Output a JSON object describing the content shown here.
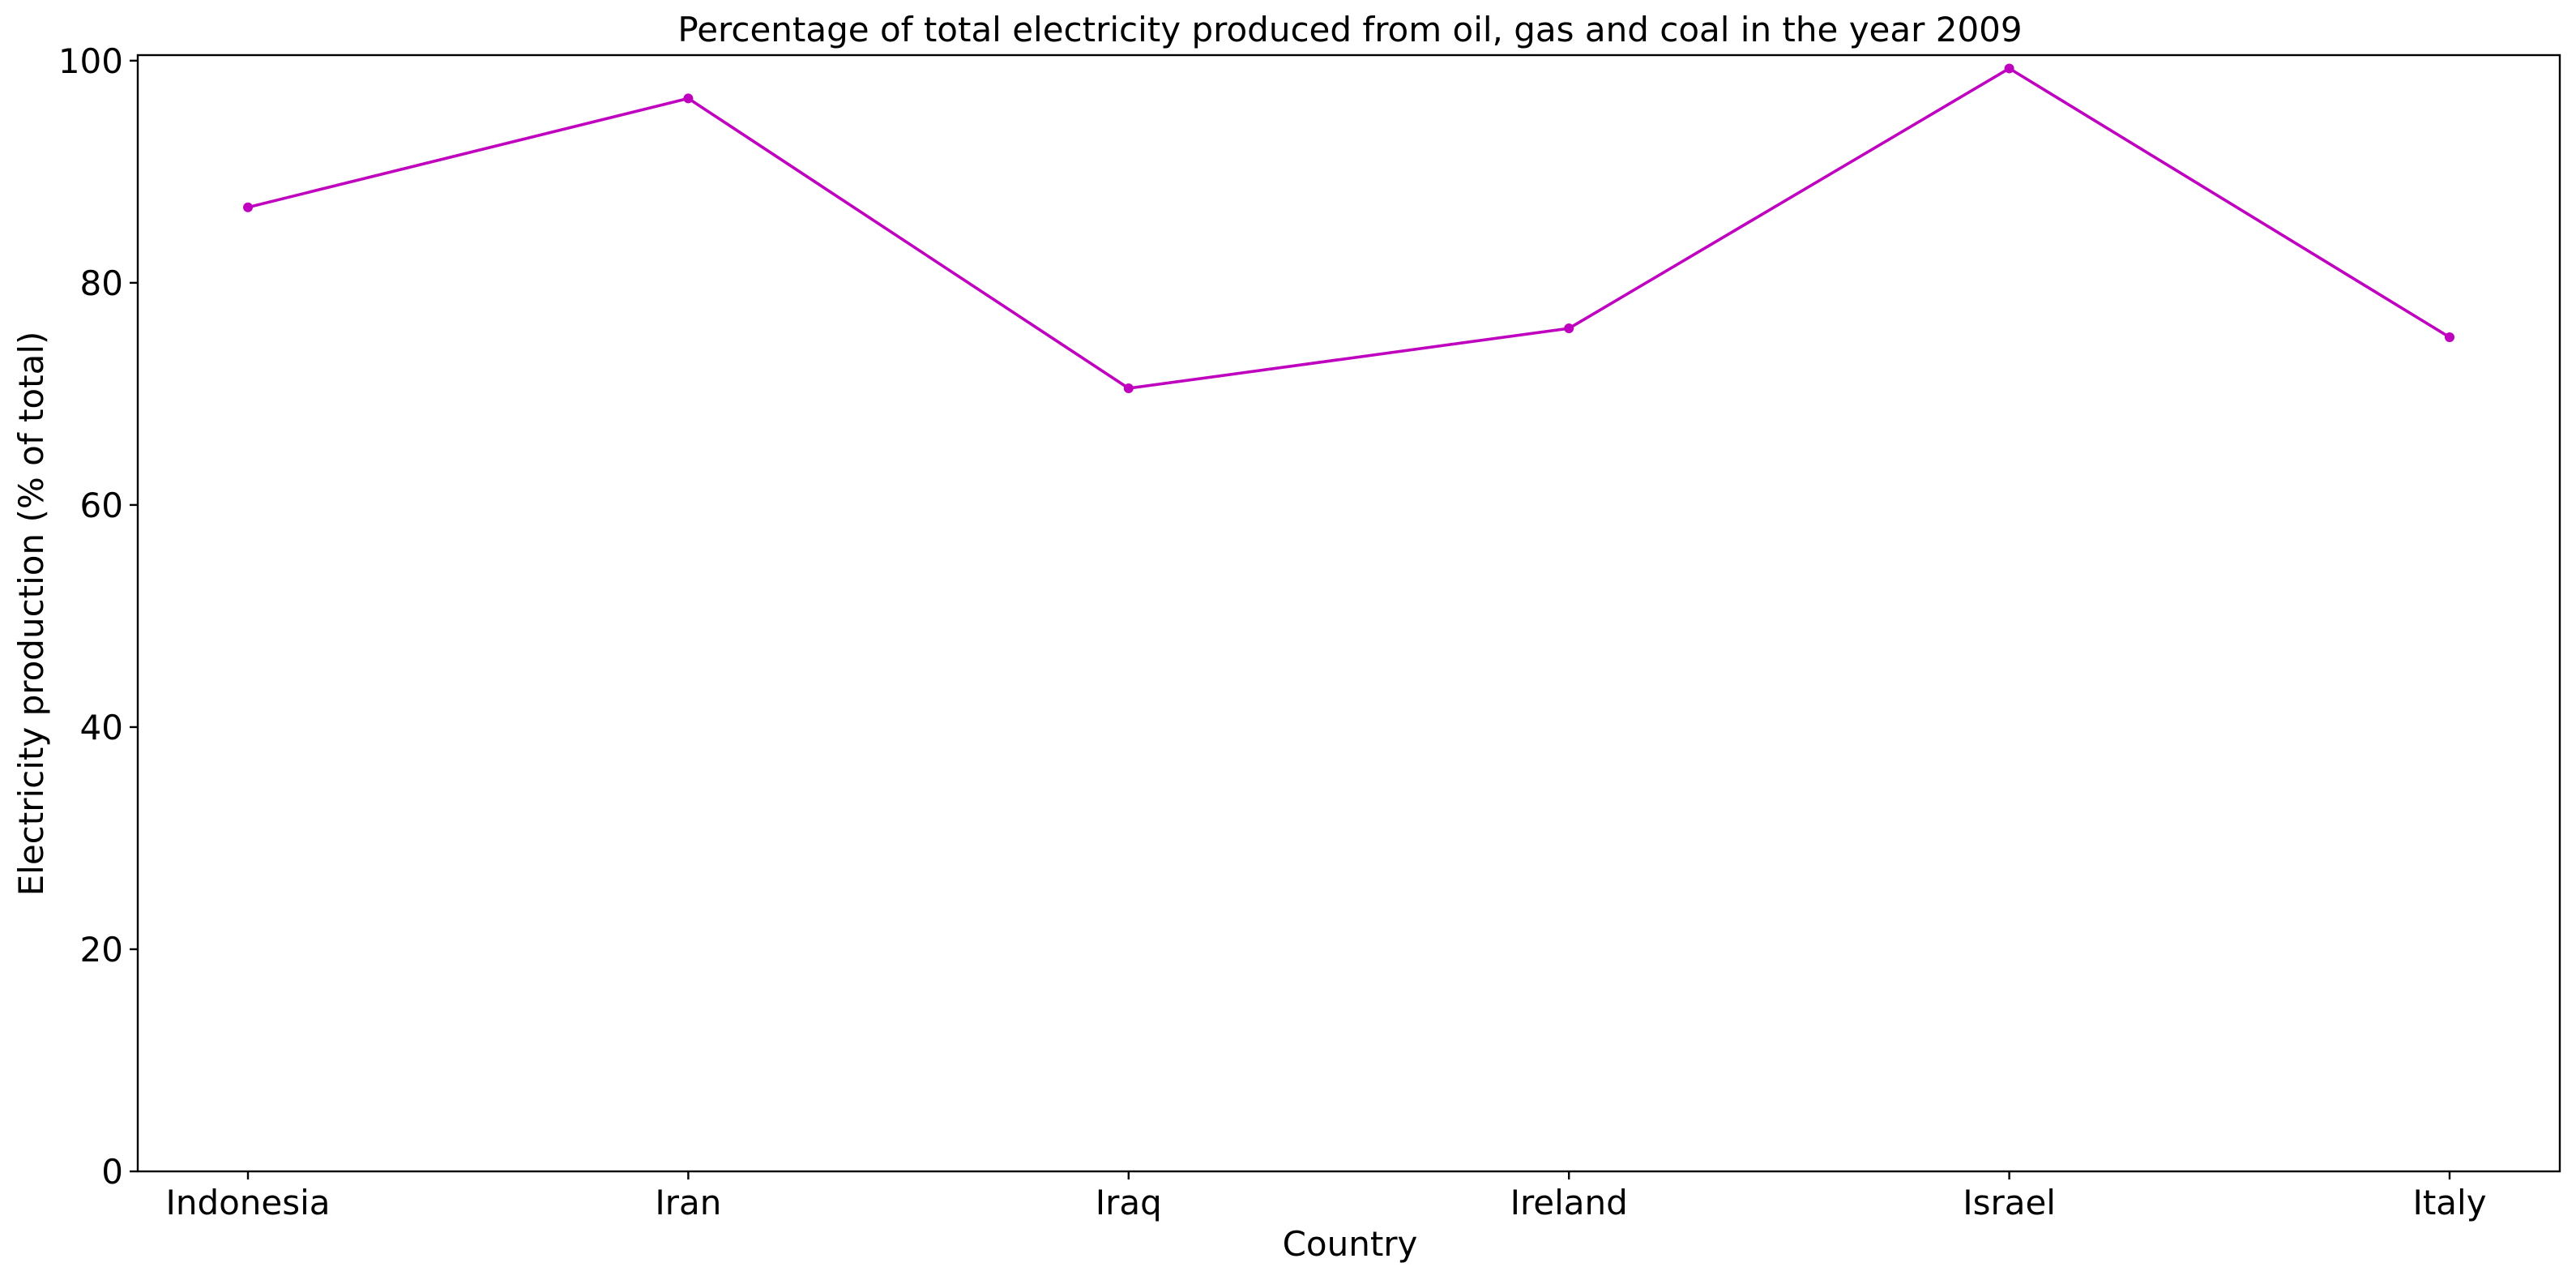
{
  "chart_data": {
    "type": "line",
    "title": "Percentage of total electricity produced from oil, gas and coal in the year 2009",
    "xlabel": "Country",
    "ylabel": "Electricity production (% of total)",
    "categories": [
      "Indonesia",
      "Iran",
      "Iraq",
      "Ireland",
      "Israel",
      "Italy"
    ],
    "series": [
      {
        "values": [
          86.8,
          96.6,
          70.5,
          75.9,
          99.3,
          75.1
        ],
        "color": "#bf00bf"
      }
    ],
    "ylim": [
      0,
      100.5
    ],
    "yticks": [
      0,
      20,
      40,
      60,
      80,
      100
    ],
    "grid": false,
    "legend": "none"
  }
}
